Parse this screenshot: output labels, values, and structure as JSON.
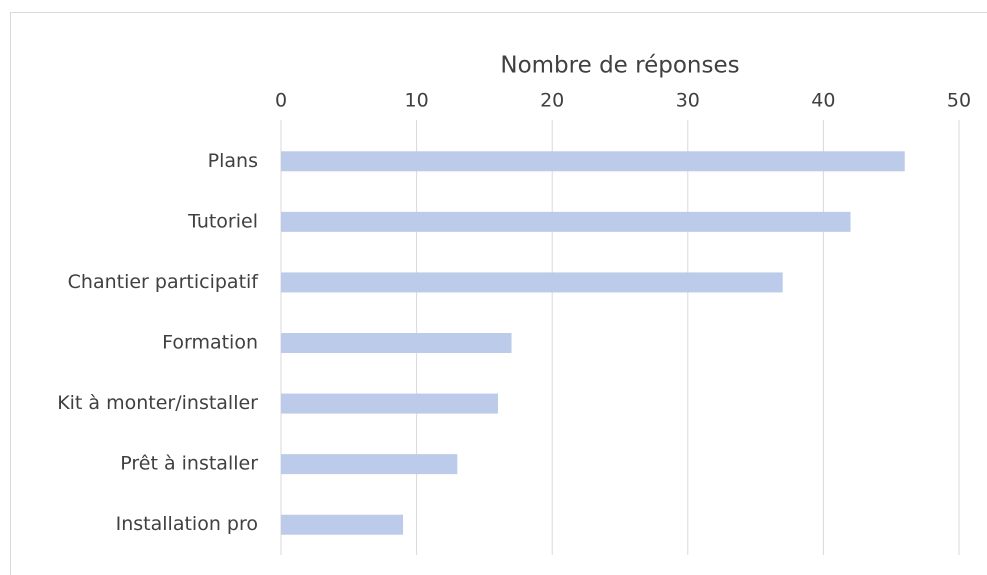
{
  "chart_data": {
    "type": "bar",
    "orientation": "horizontal",
    "xlabel": "Nombre de réponses",
    "categories": [
      "Plans",
      "Tutoriel",
      "Chantier participatif",
      "Formation",
      "Kit à monter/installer",
      "Prêt à installer",
      "Installation pro"
    ],
    "values": [
      46,
      42,
      37,
      17,
      16,
      13,
      9
    ],
    "color": "#bccbea",
    "xlim": [
      0,
      50
    ],
    "xticks": [
      0,
      10,
      20,
      30,
      40,
      50
    ],
    "grid": true
  }
}
